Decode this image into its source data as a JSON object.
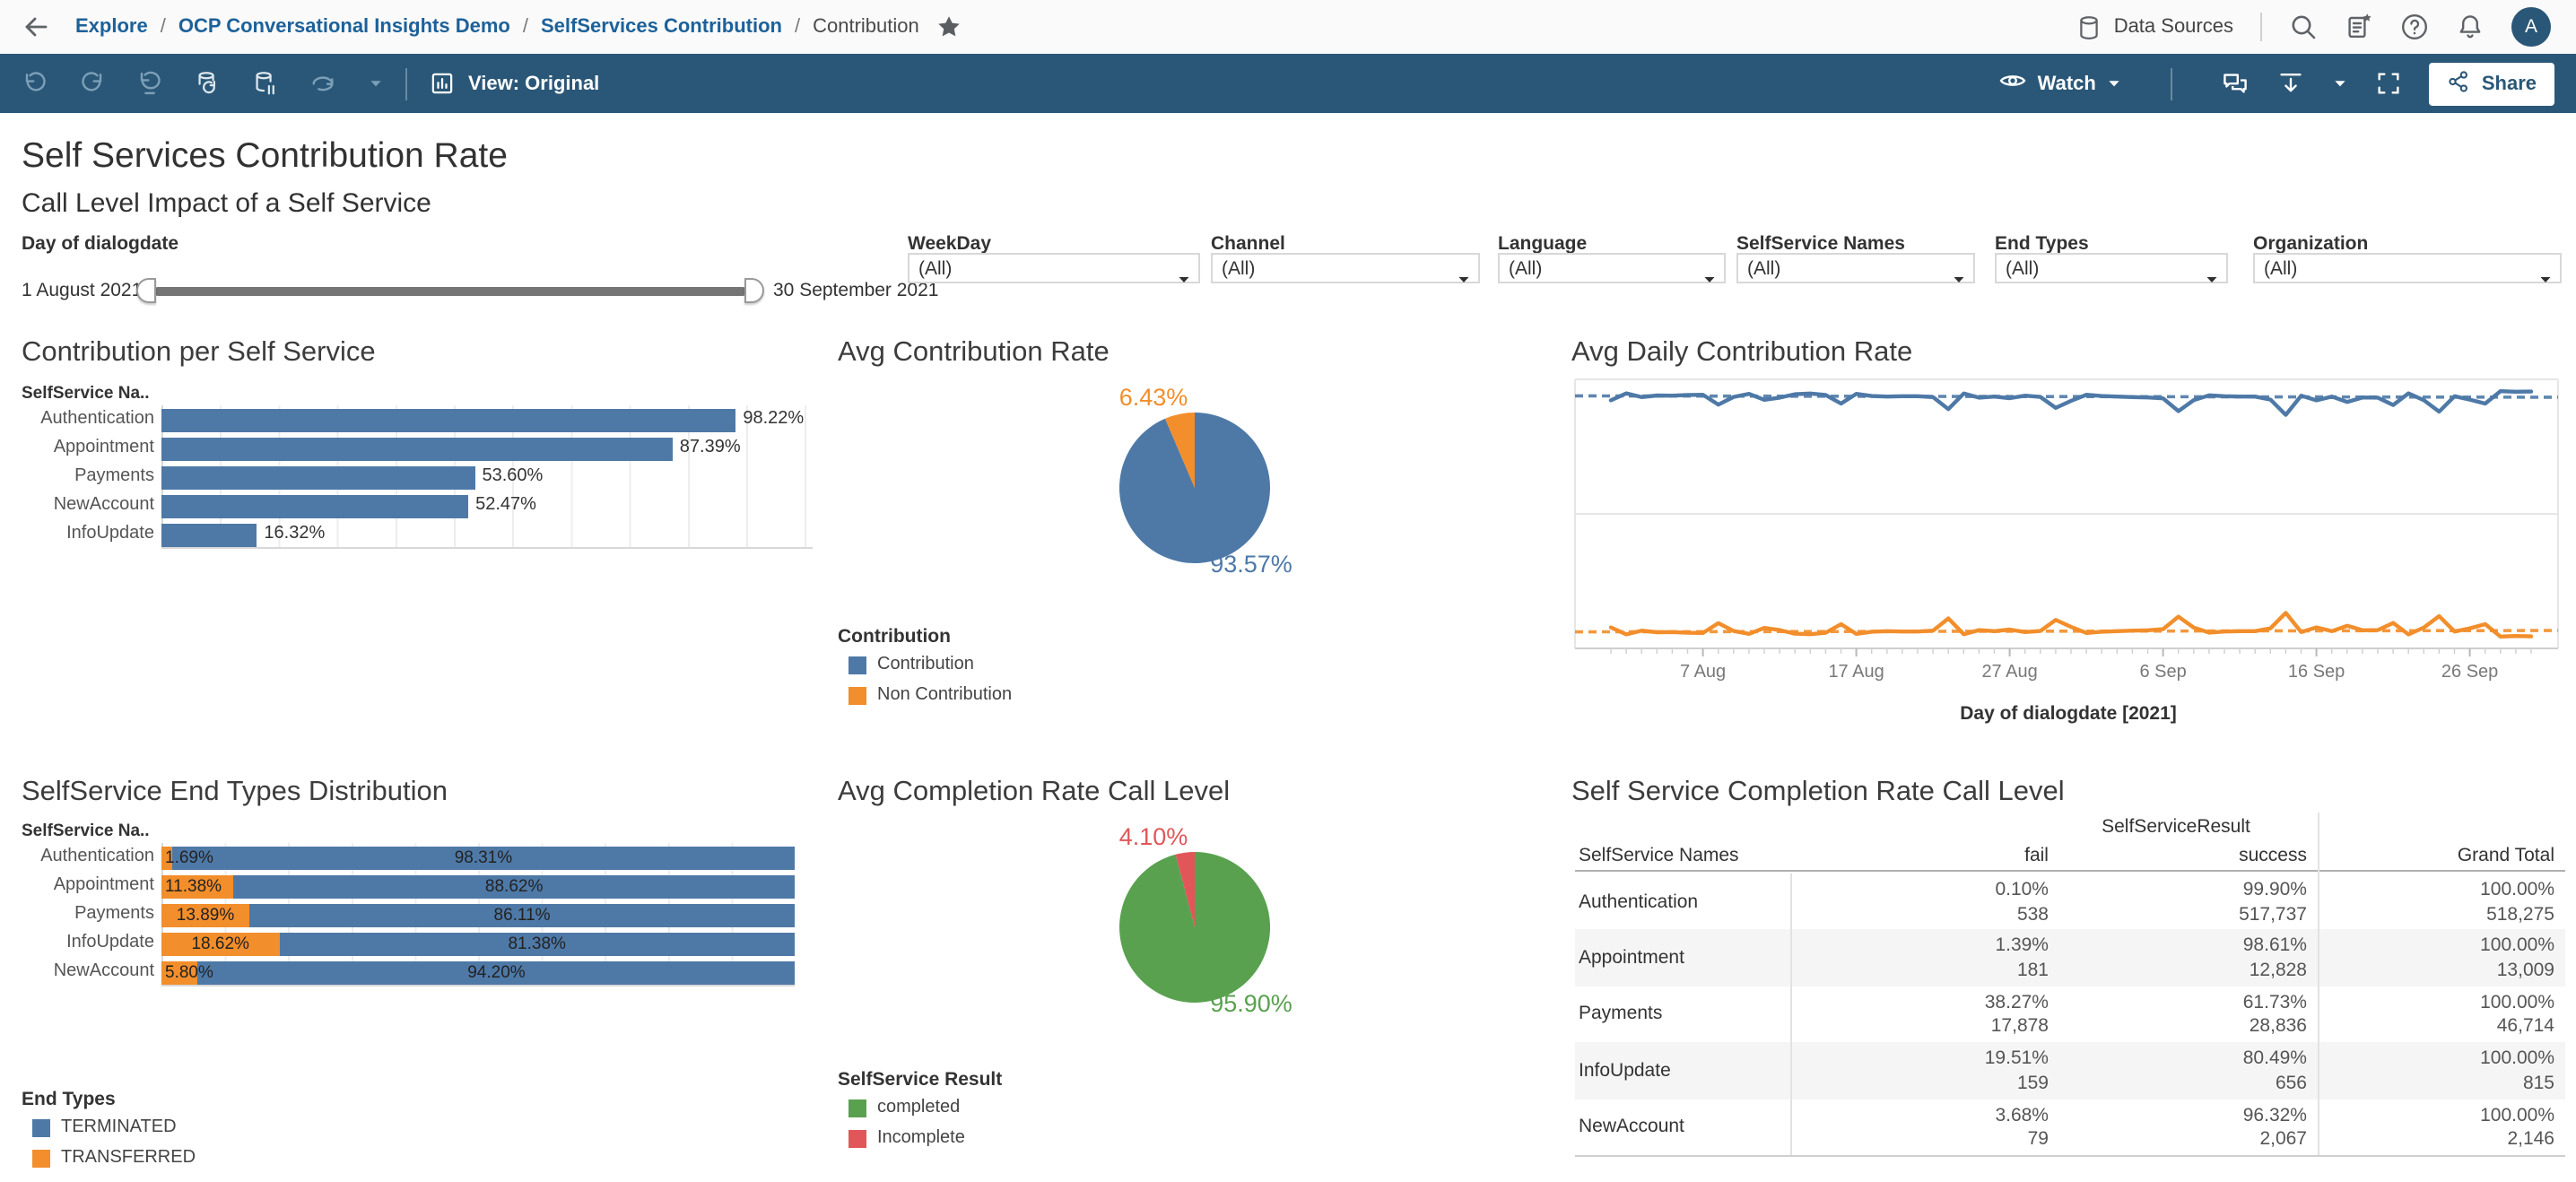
{
  "topbar": {
    "breadcrumb": [
      {
        "label": "Explore",
        "type": "link"
      },
      {
        "label": "OCP Conversational Insights Demo",
        "type": "link"
      },
      {
        "label": "SelfServices Contribution",
        "type": "link"
      },
      {
        "label": "Contribution",
        "type": "current"
      }
    ],
    "data_sources_label": "Data Sources",
    "avatar_initial": "A"
  },
  "toolbar": {
    "view_label": "View: Original",
    "watch_label": "Watch",
    "share_label": "Share"
  },
  "page": {
    "title": "Self Services Contribution Rate",
    "subtitle": "Call Level Impact of a Self Service"
  },
  "filters": {
    "date": {
      "label": "Day of dialogdate",
      "start": "1 August 2021",
      "end": "30 September 2021"
    },
    "dropdowns": [
      {
        "label": "WeekDay",
        "value": "(All)"
      },
      {
        "label": "Channel",
        "value": "(All)"
      },
      {
        "label": "Language",
        "value": "(All)"
      },
      {
        "label": "SelfService Names",
        "value": "(All)"
      },
      {
        "label": "End Types",
        "value": "(All)"
      },
      {
        "label": "Organization",
        "value": "(All)"
      }
    ]
  },
  "colors": {
    "blue": "#4e79a7",
    "orange": "#f28e2b",
    "green": "#59a14f",
    "red": "#e15759",
    "toolbar": "#2a5777"
  },
  "chart_data": [
    {
      "id": "contribution_per_self_service",
      "type": "bar",
      "title": "Contribution per Self Service",
      "row_header": "SelfService Na..",
      "categories": [
        "Authentication",
        "Appointment",
        "Payments",
        "NewAccount",
        "InfoUpdate"
      ],
      "values": [
        98.22,
        87.39,
        53.6,
        52.47,
        16.32
      ],
      "labels": [
        "98.22%",
        "87.39%",
        "53.60%",
        "52.47%",
        "16.32%"
      ],
      "bar_color": "#4e79a7",
      "xlim": [
        0,
        110
      ],
      "grid": true
    },
    {
      "id": "avg_contribution_rate",
      "type": "pie",
      "title": "Avg Contribution Rate",
      "legend_title": "Contribution",
      "slices": [
        {
          "label": "Contribution",
          "value": 93.57,
          "text": "93.57%",
          "color": "#4e79a7"
        },
        {
          "label": "Non Contribution",
          "value": 6.43,
          "text": "6.43%",
          "color": "#f28e2b"
        }
      ]
    },
    {
      "id": "avg_daily_contribution_rate",
      "type": "line",
      "title": "Avg Daily Contribution Rate",
      "xlabel": "Day of dialogdate [2021]",
      "x_start": "1 August 2021",
      "x_end": "30 September 2021",
      "x_ticks": [
        "7 Aug",
        "17 Aug",
        "27 Aug",
        "6 Sep",
        "16 Sep",
        "26 Sep"
      ],
      "x_tick_days": [
        6,
        16,
        26,
        36,
        46,
        56
      ],
      "days": 61,
      "ylim": [
        0,
        100
      ],
      "grid": "50% midline, top and bottom borders",
      "legend_position": "none",
      "series": [
        {
          "name": "Contribution",
          "color": "#4e79a7",
          "values": [
            92.2,
            94.8,
            93.4,
            94,
            93.9,
            94.2,
            94.3,
            90.6,
            93.5,
            94.6,
            92.4,
            93.2,
            94.5,
            94.7,
            94.2,
            91,
            94.6,
            93.8,
            93.6,
            93.7,
            93.7,
            93.4,
            88.9,
            94.7,
            93.2,
            93.6,
            93,
            93.9,
            93.5,
            89.4,
            92,
            94.3,
            93.8,
            93.6,
            93.4,
            93.3,
            92.9,
            88.2,
            92.3,
            94.1,
            93.7,
            93.6,
            93.6,
            92.5,
            86.8,
            93.9,
            92.2,
            93.6,
            91.6,
            93.3,
            93.2,
            90.5,
            94.8,
            92.3,
            88,
            93.7,
            92.5,
            91,
            95.6,
            95.4,
            95.5
          ]
        },
        {
          "name": "Non Contribution",
          "color": "#f28e2b",
          "values": [
            7.8,
            5.2,
            6.6,
            6,
            6.1,
            5.8,
            5.7,
            9.4,
            6.5,
            5.4,
            7.6,
            6.8,
            5.5,
            5.3,
            5.8,
            9,
            5.4,
            6.2,
            6.4,
            6.3,
            6.3,
            6.6,
            11.1,
            5.3,
            6.8,
            6.4,
            7,
            6.1,
            6.5,
            10.6,
            8,
            5.7,
            6.2,
            6.4,
            6.6,
            6.7,
            7.1,
            11.8,
            7.7,
            5.9,
            6.3,
            6.4,
            6.4,
            7.5,
            13.2,
            6.1,
            7.8,
            6.4,
            8.4,
            6.7,
            6.8,
            9.5,
            5.2,
            7.7,
            12,
            6.3,
            7.5,
            9,
            4.4,
            4.6,
            4.5
          ]
        }
      ],
      "trend_lines": [
        {
          "series": "Contribution",
          "color": "#4e79a7",
          "style": "dashed",
          "start": 93.85,
          "end": 93.35
        },
        {
          "series": "Non Contribution",
          "color": "#f28e2b",
          "style": "dashed",
          "start": 6.15,
          "end": 6.65
        }
      ]
    },
    {
      "id": "selfservice_end_types_distribution",
      "type": "bar",
      "stacked": true,
      "title": "SelfService End Types Distribution",
      "row_header": "SelfService Na..",
      "categories": [
        "Authentication",
        "Appointment",
        "Payments",
        "InfoUpdate",
        "NewAccount"
      ],
      "series": [
        {
          "name": "TRANSFERRED",
          "color": "#f28e2b",
          "values": [
            1.69,
            11.38,
            13.89,
            18.62,
            5.8
          ],
          "labels": [
            "1.69%",
            "11.38%",
            "13.89%",
            "18.62%",
            "5.80%"
          ]
        },
        {
          "name": "TERMINATED",
          "color": "#4e79a7",
          "values": [
            98.31,
            88.62,
            86.11,
            81.38,
            94.2
          ],
          "labels": [
            "98.31%",
            "88.62%",
            "86.11%",
            "81.38%",
            "94.20%"
          ]
        }
      ],
      "legend_title": "End Types",
      "legend_items": [
        {
          "label": "TERMINATED",
          "color": "#4e79a7"
        },
        {
          "label": "TRANSFERRED",
          "color": "#f28e2b"
        }
      ],
      "xlim": [
        0,
        100
      ]
    },
    {
      "id": "avg_completion_rate_call_level",
      "type": "pie",
      "title": "Avg Completion Rate Call Level",
      "legend_title": "SelfService Result",
      "slices": [
        {
          "label": "completed",
          "value": 95.9,
          "text": "95.90%",
          "color": "#59a14f"
        },
        {
          "label": "Incomplete",
          "value": 4.1,
          "text": "4.10%",
          "color": "#e15759"
        }
      ]
    },
    {
      "id": "self_service_completion_rate_call_level",
      "type": "table",
      "title": "Self Service Completion Rate Call Level",
      "column_group_header": "SelfServiceResult",
      "columns": [
        "SelfService Names",
        "fail",
        "success",
        "Grand Total"
      ],
      "rows": [
        {
          "name": "Authentication",
          "fail_pct": "0.10%",
          "fail_n": "538",
          "success_pct": "99.90%",
          "success_n": "517,737",
          "total_pct": "100.00%",
          "total_n": "518,275"
        },
        {
          "name": "Appointment",
          "fail_pct": "1.39%",
          "fail_n": "181",
          "success_pct": "98.61%",
          "success_n": "12,828",
          "total_pct": "100.00%",
          "total_n": "13,009"
        },
        {
          "name": "Payments",
          "fail_pct": "38.27%",
          "fail_n": "17,878",
          "success_pct": "61.73%",
          "success_n": "28,836",
          "total_pct": "100.00%",
          "total_n": "46,714"
        },
        {
          "name": "InfoUpdate",
          "fail_pct": "19.51%",
          "fail_n": "159",
          "success_pct": "80.49%",
          "success_n": "656",
          "total_pct": "100.00%",
          "total_n": "815"
        },
        {
          "name": "NewAccount",
          "fail_pct": "3.68%",
          "fail_n": "79",
          "success_pct": "96.32%",
          "success_n": "2,067",
          "total_pct": "100.00%",
          "total_n": "2,146"
        }
      ]
    }
  ]
}
